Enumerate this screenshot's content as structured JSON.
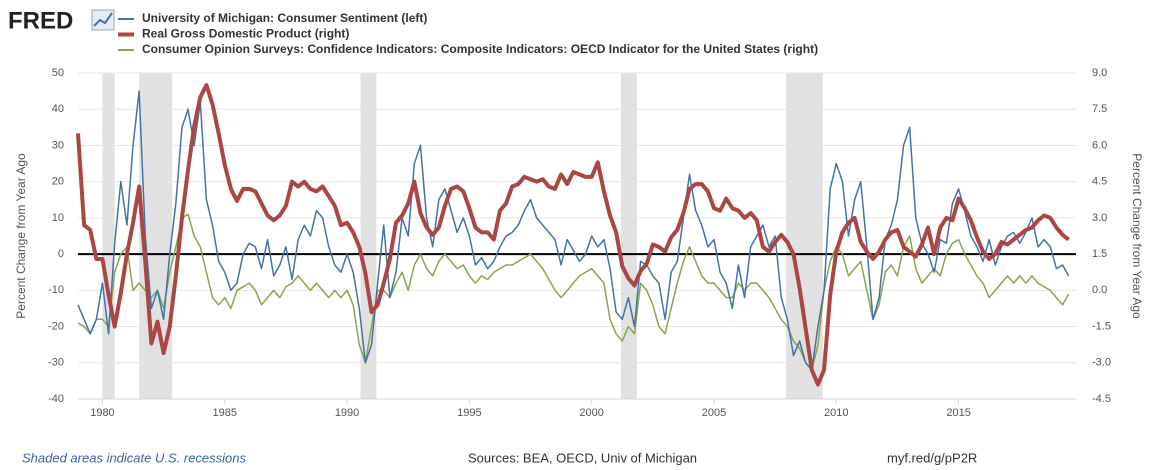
{
  "logo": "FRED",
  "chart_data": {
    "type": "line",
    "y_label": "Percent Change from Year Ago",
    "y2_label": "Percent Change from Year Ago",
    "xlim": [
      1979.0,
      2019.8
    ],
    "xticks": [
      1980,
      1985,
      1990,
      1995,
      2000,
      2005,
      2010,
      2015
    ],
    "ylim": [
      -40,
      50
    ],
    "yticks": [
      -40,
      -30,
      -20,
      -10,
      0,
      10,
      20,
      30,
      40,
      50
    ],
    "y2lim": [
      -4.5,
      9.0
    ],
    "y2ticks": [
      {
        "value": -4.5,
        "label": "-4.5"
      },
      {
        "value": -3,
        "label": "-3.0"
      },
      {
        "value": -1.5,
        "label": "-1.5"
      },
      {
        "value": 0,
        "label": "0.0"
      },
      {
        "value": 1.5,
        "label": "1.5"
      },
      {
        "value": 3,
        "label": "3.0"
      },
      {
        "value": 4.5,
        "label": "4.5"
      },
      {
        "value": 6,
        "label": "6.0"
      },
      {
        "value": 7.5,
        "label": "7.5"
      },
      {
        "value": 9,
        "label": "9.0"
      }
    ],
    "grid": true,
    "recessions": [
      [
        1980.0,
        1980.5
      ],
      [
        1981.5,
        1982.85
      ],
      [
        1990.55,
        1991.2
      ],
      [
        2001.2,
        2001.85
      ],
      [
        2007.95,
        2009.45
      ]
    ],
    "x": [
      1979,
      1979.25,
      1979.5,
      1979.75,
      1980,
      1980.25,
      1980.5,
      1980.75,
      1981,
      1981.25,
      1981.5,
      1981.75,
      1982,
      1982.25,
      1982.5,
      1982.75,
      1983,
      1983.25,
      1983.5,
      1983.75,
      1984,
      1984.25,
      1984.5,
      1984.75,
      1985,
      1985.25,
      1985.5,
      1985.75,
      1986,
      1986.25,
      1986.5,
      1986.75,
      1987,
      1987.25,
      1987.5,
      1987.75,
      1988,
      1988.25,
      1988.5,
      1988.75,
      1989,
      1989.25,
      1989.5,
      1989.75,
      1990,
      1990.25,
      1990.5,
      1990.75,
      1991,
      1991.25,
      1991.5,
      1991.75,
      1992,
      1992.25,
      1992.5,
      1992.75,
      1993,
      1993.25,
      1993.5,
      1993.75,
      1994,
      1994.25,
      1994.5,
      1994.75,
      1995,
      1995.25,
      1995.5,
      1995.75,
      1996,
      1996.25,
      1996.5,
      1996.75,
      1997,
      1997.25,
      1997.5,
      1997.75,
      1998,
      1998.25,
      1998.5,
      1998.75,
      1999,
      1999.25,
      1999.5,
      1999.75,
      2000,
      2000.25,
      2000.5,
      2000.75,
      2001,
      2001.25,
      2001.5,
      2001.75,
      2002,
      2002.25,
      2002.5,
      2002.75,
      2003,
      2003.25,
      2003.5,
      2003.75,
      2004,
      2004.25,
      2004.5,
      2004.75,
      2005,
      2005.25,
      2005.5,
      2005.75,
      2006,
      2006.25,
      2006.5,
      2006.75,
      2007,
      2007.25,
      2007.5,
      2007.75,
      2008,
      2008.25,
      2008.5,
      2008.75,
      2009,
      2009.25,
      2009.5,
      2009.75,
      2010,
      2010.25,
      2010.5,
      2010.75,
      2011,
      2011.25,
      2011.5,
      2011.75,
      2012,
      2012.25,
      2012.5,
      2012.75,
      2013,
      2013.25,
      2013.5,
      2013.75,
      2014,
      2014.25,
      2014.5,
      2014.75,
      2015,
      2015.25,
      2015.5,
      2015.75,
      2016,
      2016.25,
      2016.5,
      2016.75,
      2017,
      2017.25,
      2017.5,
      2017.75,
      2018,
      2018.25,
      2018.5,
      2018.75,
      2019,
      2019.25,
      2019.5
    ],
    "series": [
      {
        "name": "University of Michigan: Consumer Sentiment (left)",
        "color": "#4572a7",
        "width": 1.5,
        "values": [
          -14,
          -18,
          -22,
          -18,
          -8,
          -22,
          3,
          20,
          8,
          30,
          45,
          5,
          -15,
          -10,
          -18,
          0,
          14,
          35,
          40,
          30,
          42,
          15,
          8,
          -2,
          -5,
          -10,
          -8,
          0,
          3,
          2,
          -4,
          4,
          -6,
          -3,
          2,
          -7,
          4,
          8,
          5,
          12,
          10,
          2,
          -3,
          -5,
          0,
          -5,
          -15,
          -30,
          -25,
          -8,
          8,
          -12,
          -5,
          10,
          5,
          25,
          30,
          10,
          2,
          15,
          18,
          12,
          6,
          10,
          5,
          -3,
          -1,
          -4,
          -2,
          2,
          5,
          6,
          8,
          12,
          15,
          10,
          8,
          6,
          4,
          -3,
          4,
          1,
          -2,
          0,
          5,
          2,
          4,
          -4,
          -16,
          -18,
          -12,
          -20,
          -2,
          -3,
          -6,
          -8,
          -18,
          -5,
          -2,
          10,
          22,
          12,
          8,
          2,
          4,
          -5,
          -8,
          -15,
          -3,
          -12,
          2,
          5,
          8,
          2,
          5,
          -12,
          -18,
          -28,
          -24,
          -30,
          -32,
          -20,
          -10,
          18,
          25,
          20,
          5,
          15,
          20,
          2,
          -18,
          -12,
          4,
          8,
          15,
          30,
          35,
          10,
          3,
          0,
          -5,
          4,
          3,
          14,
          18,
          12,
          5,
          2,
          -2,
          4,
          -3,
          2,
          5,
          6,
          3,
          6,
          10,
          2,
          4,
          2,
          -4,
          -3,
          -6
        ]
      },
      {
        "name": "Real Gross Domestic Product (right)",
        "color": "#aa4643",
        "width": 4,
        "axis": "y2",
        "values": [
          6.5,
          2.7,
          2.5,
          1.3,
          1.3,
          -0.2,
          -1.5,
          -0.1,
          1.5,
          2.8,
          4.3,
          1.2,
          -2.2,
          -1.3,
          -2.6,
          -1.5,
          0.6,
          3.0,
          5.0,
          6.8,
          8.0,
          8.5,
          7.7,
          6.5,
          5.2,
          4.2,
          3.7,
          4.2,
          4.2,
          4.1,
          3.6,
          3.1,
          2.9,
          3.1,
          3.5,
          4.5,
          4.3,
          4.5,
          4.2,
          4.1,
          4.3,
          3.9,
          3.5,
          2.7,
          2.8,
          2.4,
          1.8,
          0.7,
          -0.9,
          -0.6,
          0.3,
          1.3,
          2.8,
          3.1,
          3.6,
          4.5,
          3.2,
          2.6,
          2.3,
          2.6,
          3.5,
          4.2,
          4.3,
          4.1,
          3.4,
          2.6,
          2.4,
          2.4,
          2.1,
          3.3,
          3.6,
          4.3,
          4.4,
          4.7,
          4.6,
          4.5,
          4.6,
          4.3,
          4.2,
          4.8,
          4.4,
          4.9,
          4.8,
          4.7,
          4.7,
          5.3,
          4.1,
          3.1,
          2.4,
          1.0,
          0.5,
          0.2,
          0.8,
          1.1,
          1.9,
          1.8,
          1.6,
          2.2,
          2.5,
          3.2,
          4.2,
          4.4,
          4.4,
          4.1,
          3.4,
          3.3,
          3.8,
          3.4,
          3.3,
          3.0,
          3.2,
          2.9,
          1.8,
          1.6,
          2.0,
          2.3,
          2.0,
          1.5,
          0.1,
          -1.6,
          -3.3,
          -3.9,
          -3.3,
          -0.2,
          1.6,
          2.4,
          2.8,
          3.0,
          2.0,
          1.6,
          1.3,
          1.6,
          2.1,
          2.4,
          2.5,
          1.8,
          1.6,
          1.4,
          1.9,
          2.6,
          1.5,
          2.6,
          3.0,
          2.9,
          3.8,
          3.4,
          2.9,
          2.2,
          1.6,
          1.3,
          1.5,
          2.0,
          1.9,
          2.1,
          2.3,
          2.5,
          2.6,
          2.9,
          3.1,
          3.0,
          2.6,
          2.3,
          2.1
        ]
      },
      {
        "name": "Consumer Opinion Surveys: Confidence Indicators: Composite Indicators: OECD Indicator for the United States (right)",
        "color": "#89a54e",
        "width": 1.5,
        "axis": "y2",
        "values": [
          -1.35,
          -1.5,
          -1.8,
          -1.2,
          -1.2,
          -1.5,
          0.75,
          1.5,
          1.8,
          0,
          0.3,
          0,
          -0.3,
          0,
          -0.75,
          0.75,
          1.8,
          3.0,
          3.15,
          2.25,
          1.8,
          0.75,
          -0.3,
          -0.6,
          -0.3,
          -0.75,
          0,
          0.15,
          0.3,
          0,
          -0.6,
          -0.3,
          0,
          -0.3,
          0.15,
          0.3,
          0.6,
          0.3,
          0,
          0.3,
          0,
          -0.3,
          0,
          -0.3,
          0,
          -0.6,
          -2.25,
          -3.0,
          -1.5,
          0,
          0,
          -0.3,
          0.3,
          0.75,
          0,
          1.05,
          1.5,
          0.9,
          0.6,
          1.2,
          1.5,
          1.2,
          0.9,
          1.05,
          0.6,
          0.3,
          0.6,
          0.45,
          0.75,
          0.9,
          1.05,
          1.05,
          1.2,
          1.35,
          1.5,
          1.2,
          0.9,
          0.45,
          0,
          -0.3,
          0,
          0.3,
          0.6,
          0.75,
          0.9,
          0.6,
          0.3,
          -1.2,
          -1.8,
          -2.1,
          -1.5,
          -1.8,
          0.3,
          0,
          -0.6,
          -1.5,
          -1.8,
          -0.75,
          0.3,
          1.2,
          1.8,
          1.2,
          0.6,
          0.3,
          0.3,
          0,
          -0.3,
          -0.3,
          0.3,
          0,
          0.3,
          0.3,
          0,
          -0.3,
          -0.75,
          -1.2,
          -1.5,
          -2.1,
          -2.4,
          -3.0,
          -3.3,
          -2.25,
          0,
          1.2,
          1.8,
          1.5,
          0.6,
          0.9,
          1.2,
          0,
          -1.2,
          -0.6,
          0.75,
          1.05,
          0.6,
          1.8,
          2.25,
          0.9,
          0.3,
          0.6,
          0.9,
          0.6,
          1.5,
          1.95,
          2.1,
          1.5,
          1.05,
          0.6,
          0.3,
          -0.3,
          0,
          0.3,
          0.6,
          0.3,
          0.6,
          0.3,
          0.6,
          0.3,
          0.15,
          0,
          -0.3,
          -0.6,
          -0.15
        ]
      }
    ]
  },
  "footer": {
    "note": "Shaded areas indicate U.S. recessions",
    "sources": "Sources: BEA, OECD, Univ of Michigan",
    "link": "myf.red/g/pP2R"
  }
}
